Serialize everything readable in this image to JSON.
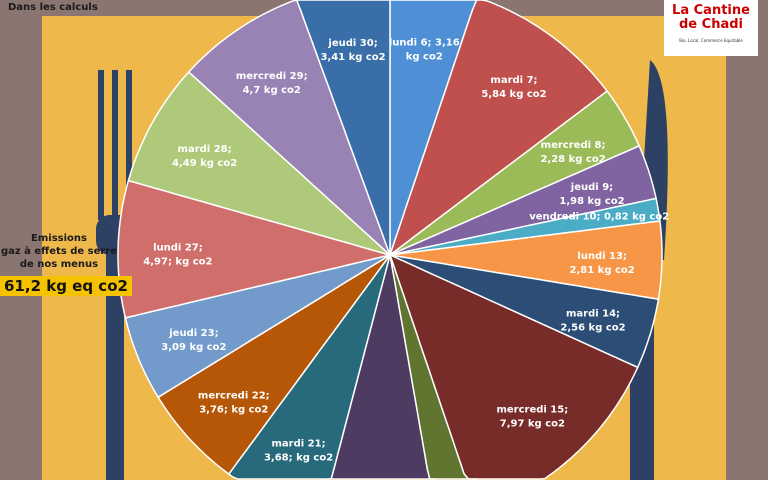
{
  "header": {
    "note": "Dans les calculs"
  },
  "summary": {
    "label_line1": "Emissions",
    "label_line2": "gaz à effets de serre",
    "label_line3": "de nos menus",
    "total": "61,2 kg eq co2"
  },
  "logo": {
    "name": "La Cantine de Chadi",
    "tagline": "Bio, Local, Commerce Equitable"
  },
  "chart_data": {
    "type": "pie",
    "unit": "kg co2",
    "total": 61.2,
    "slices": [
      {
        "label": "lundi 6; 3,16",
        "sub": "kg co2",
        "value": 3.16,
        "color": "#4f8fd6"
      },
      {
        "label": "mardi 7;",
        "sub": "5,84 kg co2",
        "value": 5.84,
        "color": "#c0504d"
      },
      {
        "label": "mercredi 8;",
        "sub": "2,28 kg co2",
        "value": 2.28,
        "color": "#9bbb59"
      },
      {
        "label": "jeudi 9;",
        "sub": "1,98 kg co2",
        "value": 1.98,
        "color": "#8064a2"
      },
      {
        "label": "vendredi 10; 0,82 kg co2",
        "sub": "",
        "value": 0.82,
        "color": "#4bacc6"
      },
      {
        "label": "lundi 13;",
        "sub": "2,81 kg co2",
        "value": 2.81,
        "color": "#f79646"
      },
      {
        "label": "mardi 14;",
        "sub": "2,56 kg co2",
        "value": 2.56,
        "color": "#2c4d75"
      },
      {
        "label": "mercredi 15;",
        "sub": "7,97 kg co2",
        "value": 7.97,
        "color": "#772c2a"
      },
      {
        "label": "",
        "sub": "",
        "value": 1.5,
        "color": "#5f7530"
      },
      {
        "label": "",
        "sub": "",
        "value": 4.18,
        "color": "#4d3b62"
      },
      {
        "label": "mardi 21;",
        "sub": "3,68; kg co2",
        "value": 3.68,
        "color": "#276a7c"
      },
      {
        "label": "mercredi 22;",
        "sub": "3,76; kg co2",
        "value": 3.76,
        "color": "#b65708"
      },
      {
        "label": "jeudi 23;",
        "sub": "3,09 kg co2",
        "value": 3.09,
        "color": "#729aca"
      },
      {
        "label": "lundi 27;",
        "sub": "4,97; kg co2",
        "value": 4.97,
        "color": "#d06e6b"
      },
      {
        "label": "mardi 28;",
        "sub": "4,49 kg co2",
        "value": 4.49,
        "color": "#afc97a"
      },
      {
        "label": "mercredi 29;",
        "sub": "4,7 kg co2",
        "value": 4.7,
        "color": "#9983b5"
      },
      {
        "label": "jeudi 30;",
        "sub": "3,41 kg co2",
        "value": 3.41,
        "color": "#3a6ea8"
      }
    ]
  }
}
